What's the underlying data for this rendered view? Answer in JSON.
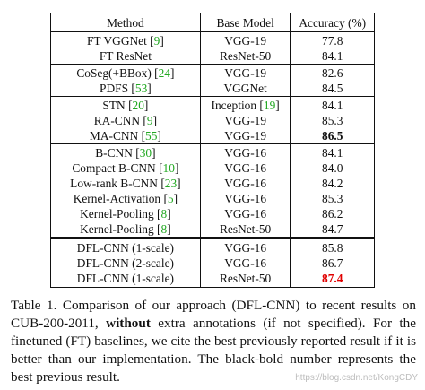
{
  "table": {
    "headers": [
      "Method",
      "Base Model",
      "Accuracy (%)"
    ],
    "groups": [
      {
        "rows": [
          {
            "method": "FT VGGNet",
            "cite": "9",
            "base": "VGG-19",
            "base_cite": "",
            "acc": "77.8",
            "acc_style": ""
          },
          {
            "method": "FT ResNet",
            "cite": "",
            "base": "ResNet-50",
            "base_cite": "",
            "acc": "84.1",
            "acc_style": ""
          }
        ]
      },
      {
        "rows": [
          {
            "method": "CoSeg(+BBox)",
            "cite": "24",
            "base": "VGG-19",
            "base_cite": "",
            "acc": "82.6",
            "acc_style": ""
          },
          {
            "method": "PDFS",
            "cite": "53",
            "base": "VGGNet",
            "base_cite": "",
            "acc": "84.5",
            "acc_style": ""
          }
        ]
      },
      {
        "rows": [
          {
            "method": "STN",
            "cite": "20",
            "base": "Inception",
            "base_cite": "19",
            "acc": "84.1",
            "acc_style": ""
          },
          {
            "method": "RA-CNN",
            "cite": "9",
            "base": "VGG-19",
            "base_cite": "",
            "acc": "85.3",
            "acc_style": ""
          },
          {
            "method": "MA-CNN",
            "cite": "55",
            "base": "VGG-19",
            "base_cite": "",
            "acc": "86.5",
            "acc_style": "bold"
          }
        ]
      },
      {
        "rows": [
          {
            "method": "B-CNN",
            "cite": "30",
            "base": "VGG-16",
            "base_cite": "",
            "acc": "84.1",
            "acc_style": ""
          },
          {
            "method": "Compact B-CNN",
            "cite": "10",
            "base": "VGG-16",
            "base_cite": "",
            "acc": "84.0",
            "acc_style": ""
          },
          {
            "method": "Low-rank B-CNN",
            "cite": "23",
            "base": "VGG-16",
            "base_cite": "",
            "acc": "84.2",
            "acc_style": ""
          },
          {
            "method": "Kernel-Activation",
            "cite": "5",
            "base": "VGG-16",
            "base_cite": "",
            "acc": "85.3",
            "acc_style": ""
          },
          {
            "method": "Kernel-Pooling",
            "cite": "8",
            "base": "VGG-16",
            "base_cite": "",
            "acc": "86.2",
            "acc_style": ""
          },
          {
            "method": "Kernel-Pooling",
            "cite": "8",
            "base": "ResNet-50",
            "base_cite": "",
            "acc": "84.7",
            "acc_style": ""
          }
        ]
      },
      {
        "double": true,
        "rows": [
          {
            "method": "DFL-CNN (1-scale)",
            "cite": "",
            "base": "VGG-16",
            "base_cite": "",
            "acc": "85.8",
            "acc_style": ""
          },
          {
            "method": "DFL-CNN (2-scale)",
            "cite": "",
            "base": "VGG-16",
            "base_cite": "",
            "acc": "86.7",
            "acc_style": ""
          },
          {
            "method": "DFL-CNN (1-scale)",
            "cite": "",
            "base": "ResNet-50",
            "base_cite": "",
            "acc": "87.4",
            "acc_style": "red"
          }
        ]
      }
    ]
  },
  "caption": {
    "part1": "Table 1. Comparison of our approach (DFL-CNN) to recent results on CUB-200-2011, ",
    "bold": "without",
    "part2": " extra annotations (if not specified). For the finetuned (FT) baselines, we cite the best previously reported result if it is better than our implementation. The black-bold number represents the best previous result."
  },
  "watermark": "https://blog.csdn.net/KongCDY"
}
